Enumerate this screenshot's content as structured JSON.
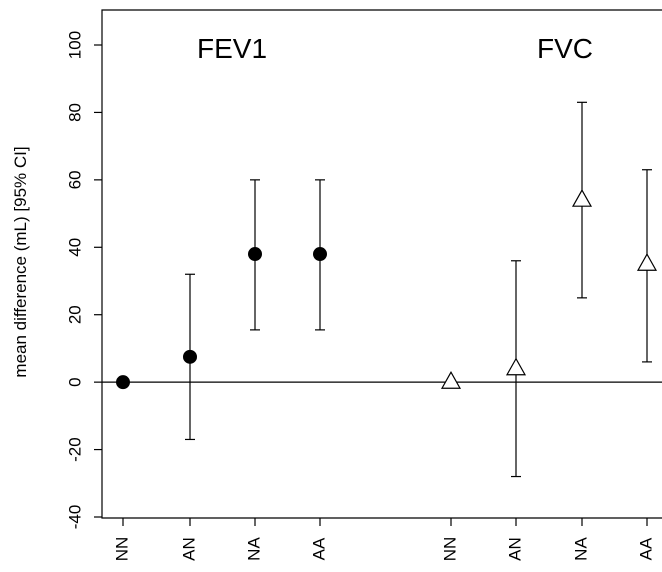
{
  "chart_data": {
    "type": "scatter",
    "ylabel": "mean difference (mL) [95% CI]",
    "ylim": [
      -40,
      100
    ],
    "yticks": [
      -40,
      -20,
      0,
      20,
      40,
      60,
      80,
      100
    ],
    "reference_line_y": 0,
    "x_tick_labels": [
      "NN",
      "AN",
      "NA",
      "AA",
      "NN",
      "AN",
      "NA",
      "AA"
    ],
    "series": [
      {
        "name": "FEV1",
        "marker": "filled-circle",
        "points": [
          {
            "x": "NN",
            "y": 0,
            "low": 0,
            "high": 0
          },
          {
            "x": "AN",
            "y": 7.5,
            "low": -17,
            "high": 32
          },
          {
            "x": "NA",
            "y": 38,
            "low": 15.5,
            "high": 60
          },
          {
            "x": "AA",
            "y": 38,
            "low": 15.5,
            "high": 60
          }
        ]
      },
      {
        "name": "FVC",
        "marker": "open-triangle",
        "points": [
          {
            "x": "NN",
            "y": 0,
            "low": 0,
            "high": 0
          },
          {
            "x": "AN",
            "y": 4,
            "low": -28,
            "high": 36
          },
          {
            "x": "NA",
            "y": 54,
            "low": 25,
            "high": 83
          },
          {
            "x": "AA",
            "y": 35,
            "low": 6,
            "high": 63
          }
        ]
      }
    ]
  }
}
